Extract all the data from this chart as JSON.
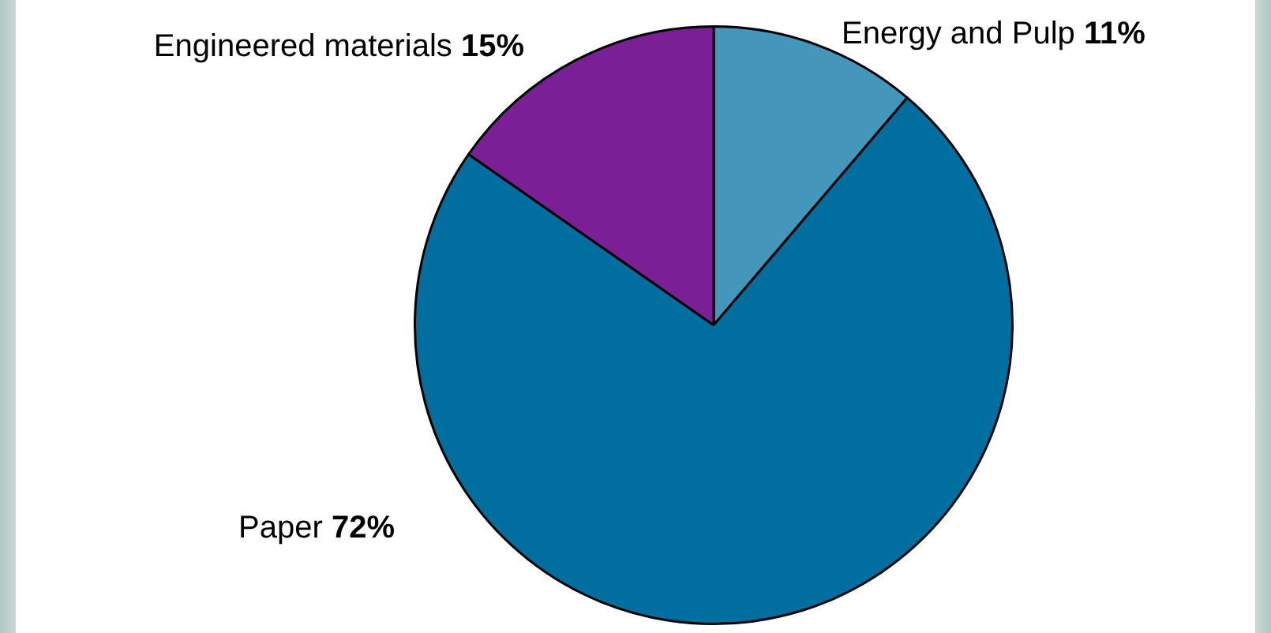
{
  "chart_data": {
    "type": "pie",
    "categories": [
      "Energy and Pulp",
      "Paper",
      "Engineered materials"
    ],
    "values": [
      11,
      72,
      15
    ],
    "colors": [
      "#4496bb",
      "#006f9f",
      "#7b1f96"
    ],
    "value_labels": [
      "11%",
      "72%",
      "15%"
    ]
  }
}
